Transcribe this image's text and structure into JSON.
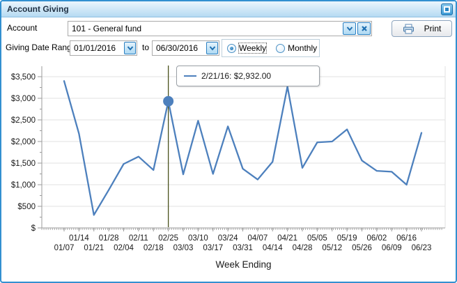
{
  "window": {
    "title": "Account Giving"
  },
  "toolbar": {
    "account_label": "Account",
    "account_value": "101 - General fund",
    "print_label": "Print"
  },
  "filters": {
    "date_range_label": "Giving Date Range",
    "date_from": "01/01/2016",
    "to_label": "to",
    "date_to": "06/30/2016",
    "interval_options": [
      {
        "label": "Weekly",
        "selected": true
      },
      {
        "label": "Monthly",
        "selected": false
      }
    ]
  },
  "chart_data": {
    "type": "line",
    "xlabel": "Week Ending",
    "ylabel": "",
    "ylim": [
      0,
      3500
    ],
    "y_tick_interval": 500,
    "y_tick_labels": [
      "$",
      "$500",
      "$1,000",
      "$1,500",
      "$2,000",
      "$2,500",
      "$3,000",
      "$3,500"
    ],
    "categories": [
      "01/07",
      "01/14",
      "01/21",
      "01/28",
      "02/04",
      "02/11",
      "02/18",
      "02/25",
      "03/03",
      "03/10",
      "03/17",
      "03/24",
      "03/31",
      "04/07",
      "04/14",
      "04/21",
      "04/28",
      "05/05",
      "05/12",
      "05/19",
      "05/26",
      "06/02",
      "06/09",
      "06/16",
      "06/23"
    ],
    "values": [
      3400,
      2180,
      300,
      880,
      1480,
      1650,
      1340,
      2932,
      1240,
      2480,
      1250,
      2350,
      1370,
      1120,
      1530,
      3270,
      1390,
      1980,
      2000,
      2280,
      1560,
      1320,
      1300,
      1000,
      2200
    ],
    "grid": true,
    "legend": "none",
    "highlight": {
      "index": 7,
      "date_label": "2/21/16",
      "value": 2932,
      "tooltip": "2/21/16: $2,932.00"
    },
    "colors": {
      "line": "#4d80bd",
      "marker": "#4d80bd",
      "crosshair": "#4a521d",
      "grid": "#e0e0e0",
      "axis": "#9b9b9b"
    }
  }
}
